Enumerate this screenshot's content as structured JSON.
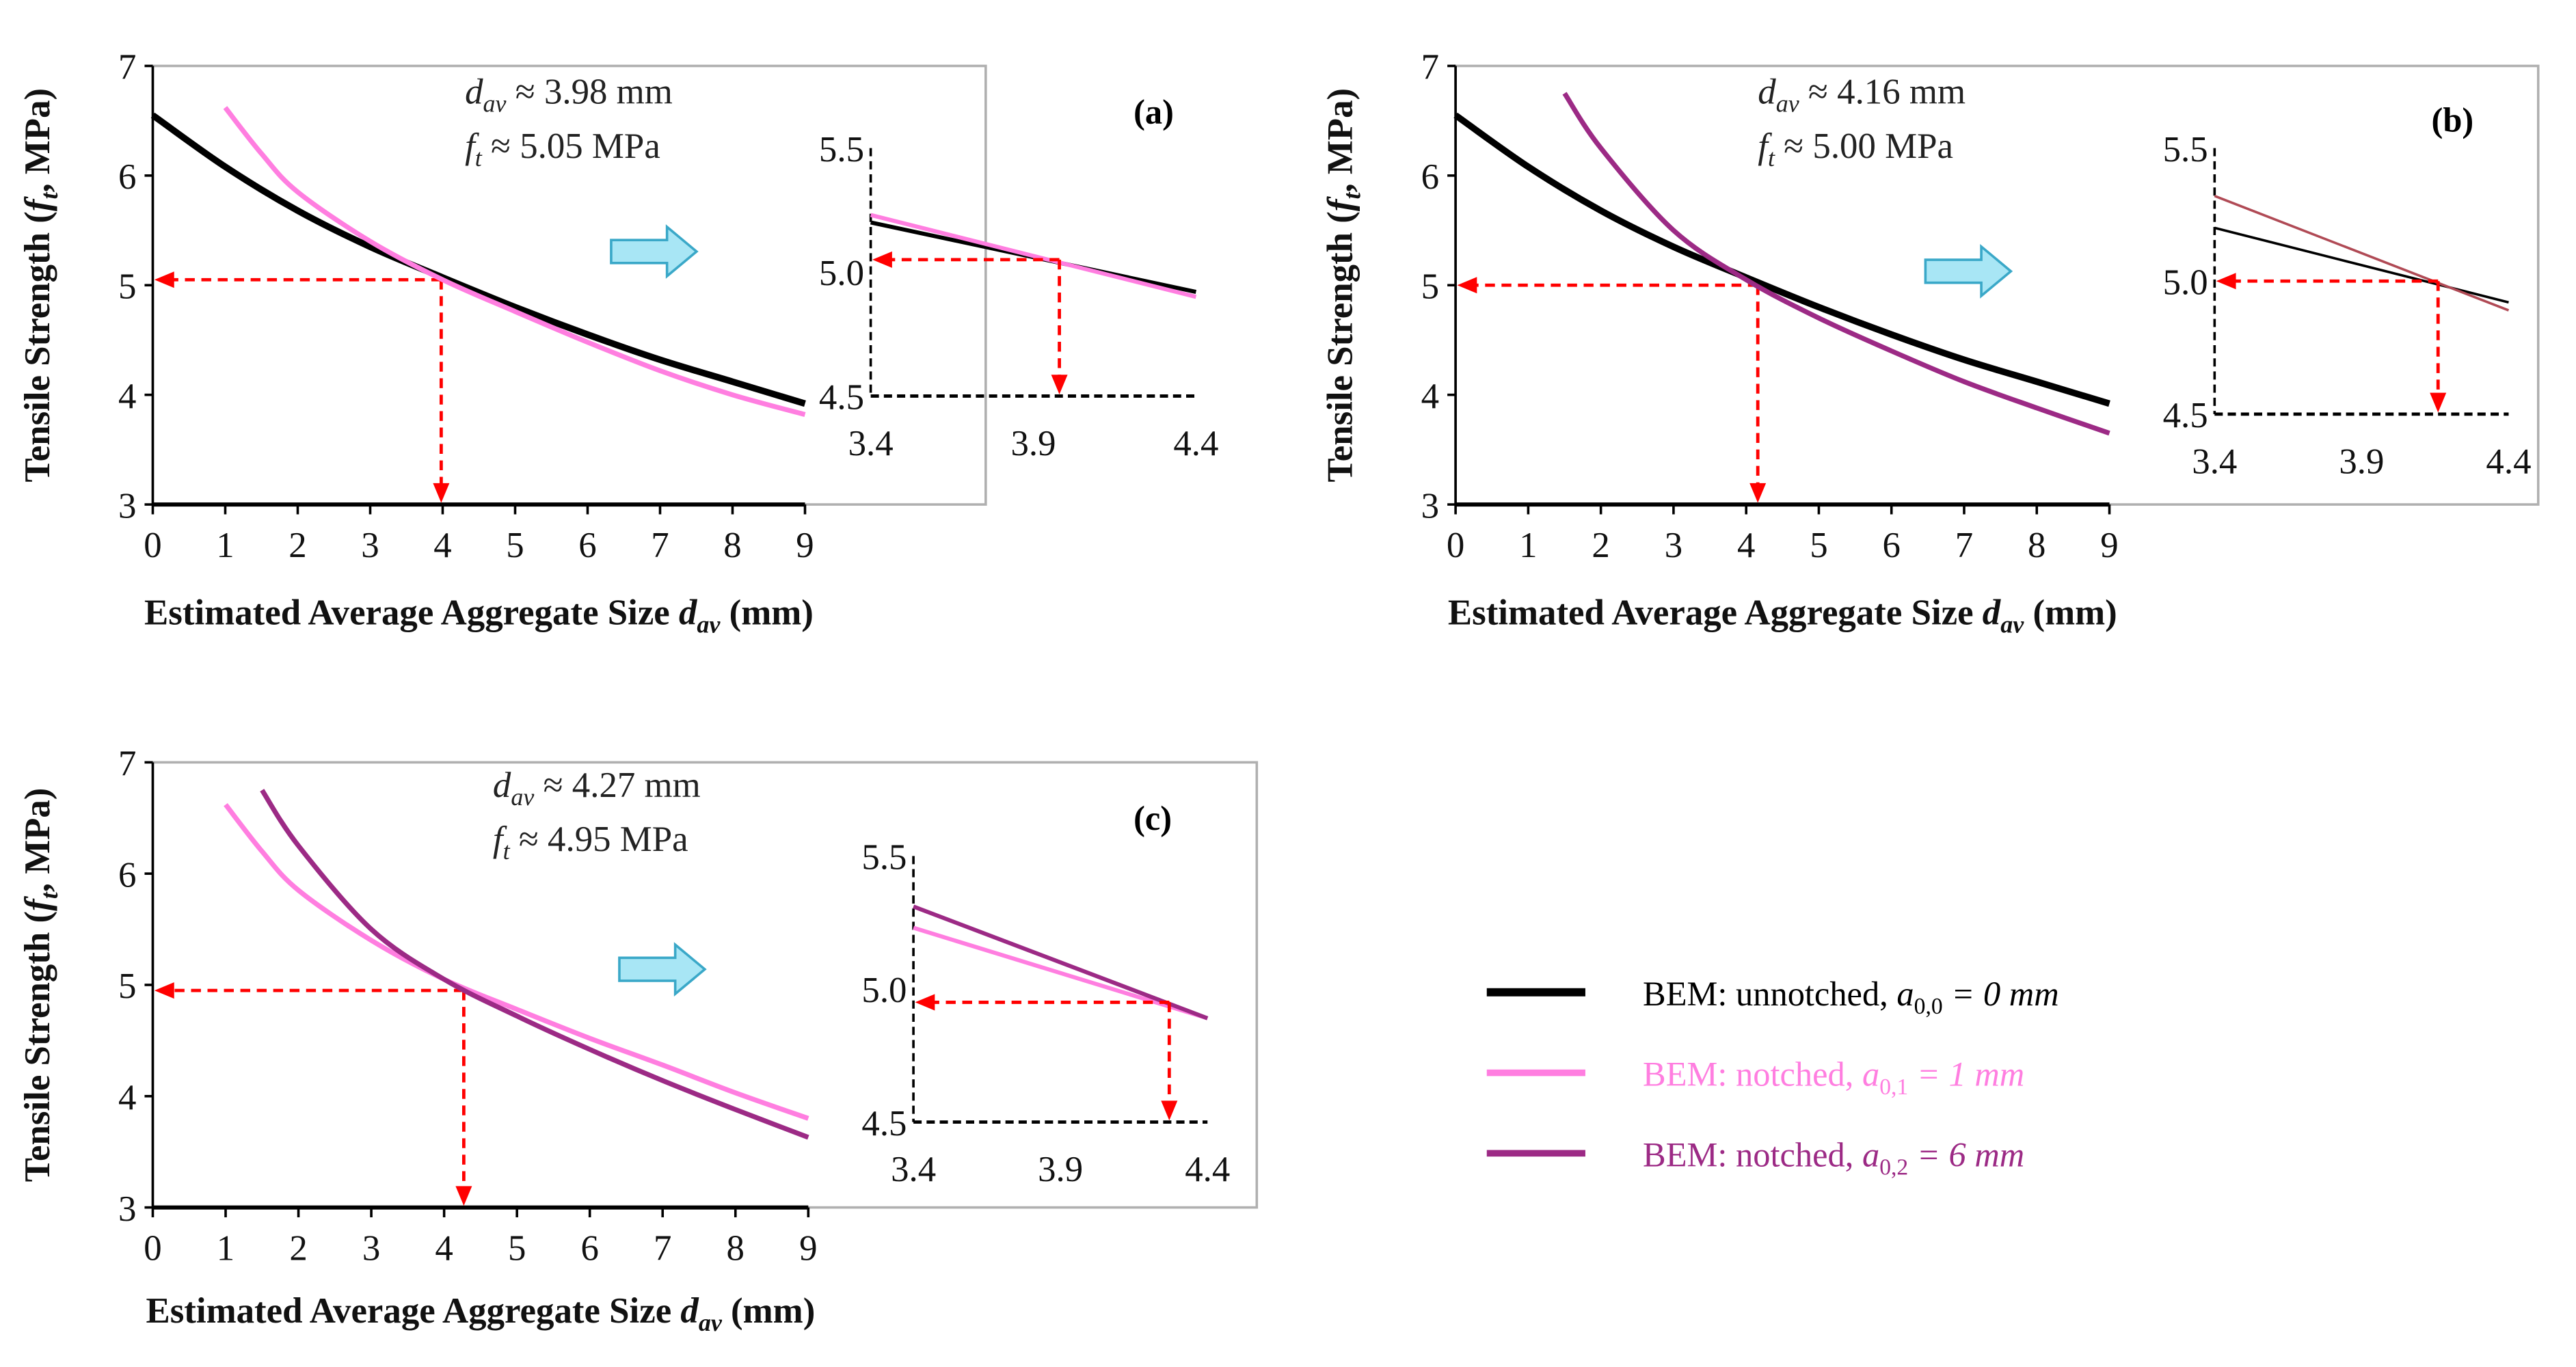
{
  "chart_data": [
    {
      "type": "line",
      "panel_label": "(a)",
      "xlabel": {
        "text": "Estimated Average Aggregate Size ",
        "sym": "d",
        "sub": "av",
        "unit": " (mm)"
      },
      "ylabel": {
        "text": "Tensile Strength (",
        "sym": "f",
        "sub": "t",
        "unit": ", MPa)"
      },
      "xlim": [
        0,
        9
      ],
      "ylim": [
        3,
        7
      ],
      "xticks": [
        "0",
        "1",
        "2",
        "3",
        "4",
        "5",
        "6",
        "7",
        "8",
        "9"
      ],
      "yticks": [
        "3",
        "4",
        "5",
        "6",
        "7"
      ],
      "annotation": [
        {
          "sym": "d",
          "sub": "av",
          "rest": " ≈ 3.98 mm"
        },
        {
          "sym": "f",
          "sub": "t",
          "rest": " ≈ 5.05 MPa"
        }
      ],
      "intersection": {
        "x": 3.98,
        "y": 5.05
      },
      "series": [
        {
          "name": "BEM: unnotched, a0,0 = 0 mm",
          "color": "#000000",
          "x": [
            0,
            1,
            2,
            3,
            4,
            5,
            6,
            7,
            8,
            9
          ],
          "y": [
            6.55,
            6.08,
            5.68,
            5.35,
            5.07,
            4.8,
            4.55,
            4.32,
            4.12,
            3.92
          ]
        },
        {
          "name": "BEM: notched, a0,1 = 1 mm",
          "color": "#ff7ee0",
          "x": [
            1,
            1.5,
            2,
            3,
            4,
            5,
            6,
            7,
            8,
            9
          ],
          "y": [
            6.62,
            6.2,
            5.85,
            5.4,
            5.05,
            4.76,
            4.48,
            4.22,
            4.0,
            3.82
          ]
        }
      ],
      "inset": {
        "xlim": [
          3.4,
          4.4
        ],
        "ylim": [
          4.5,
          5.5
        ],
        "xticks": [
          "3.4",
          "3.9",
          "4.4"
        ],
        "yticks": [
          "4.5",
          "5.0",
          "5.5"
        ],
        "series": [
          {
            "color": "#000000",
            "x": [
              3.4,
              4.4
            ],
            "y": [
              5.2,
              4.92
            ]
          },
          {
            "color": "#ff7ee0",
            "x": [
              3.4,
              4.4
            ],
            "y": [
              5.23,
              4.9
            ]
          }
        ],
        "intersection": {
          "x": 3.98,
          "y": 5.05
        }
      }
    },
    {
      "type": "line",
      "panel_label": "(b)",
      "xlabel": {
        "text": "Estimated Average Aggregate Size ",
        "sym": "d",
        "sub": "av",
        "unit": " (mm)"
      },
      "ylabel": {
        "text": "Tensile Strength (",
        "sym": "f",
        "sub": "t",
        "unit": ", MPa)"
      },
      "xlim": [
        0,
        9
      ],
      "ylim": [
        3,
        7
      ],
      "xticks": [
        "0",
        "1",
        "2",
        "3",
        "4",
        "5",
        "6",
        "7",
        "8",
        "9"
      ],
      "yticks": [
        "3",
        "4",
        "5",
        "6",
        "7"
      ],
      "annotation": [
        {
          "sym": "d",
          "sub": "av",
          "rest": " ≈ 4.16 mm"
        },
        {
          "sym": "f",
          "sub": "t",
          "rest": " ≈ 5.00 MPa"
        }
      ],
      "intersection": {
        "x": 4.16,
        "y": 5.0
      },
      "series": [
        {
          "name": "BEM: unnotched, a0,0 = 0 mm",
          "color": "#000000",
          "x": [
            0,
            1,
            2,
            3,
            4,
            5,
            6,
            7,
            8,
            9
          ],
          "y": [
            6.55,
            6.08,
            5.68,
            5.35,
            5.07,
            4.8,
            4.55,
            4.32,
            4.12,
            3.92
          ]
        },
        {
          "name": "BEM: notched, a0,2 = 6 mm",
          "color": "#9c2a85",
          "x": [
            1.5,
            2,
            3,
            4,
            5,
            6,
            7,
            8,
            9
          ],
          "y": [
            6.75,
            6.25,
            5.5,
            5.05,
            4.7,
            4.4,
            4.12,
            3.88,
            3.65
          ]
        }
      ],
      "inset": {
        "xlim": [
          3.4,
          4.4
        ],
        "ylim": [
          4.5,
          5.5
        ],
        "xticks": [
          "3.4",
          "3.9",
          "4.4"
        ],
        "yticks": [
          "4.5",
          "5.0",
          "5.5"
        ],
        "series": [
          {
            "color": "#000000",
            "x": [
              3.4,
              4.4
            ],
            "y": [
              5.2,
              4.92
            ]
          },
          {
            "color": "#b04a55",
            "x": [
              3.4,
              4.4
            ],
            "y": [
              5.32,
              4.89
            ]
          }
        ],
        "intersection": {
          "x": 4.16,
          "y": 5.0
        }
      }
    },
    {
      "type": "line",
      "panel_label": "(c)",
      "xlabel": {
        "text": "Estimated Average Aggregate Size ",
        "sym": "d",
        "sub": "av",
        "unit": " (mm)"
      },
      "ylabel": {
        "text": "Tensile Strength (",
        "sym": "f",
        "sub": "t",
        "unit": ", MPa)"
      },
      "xlim": [
        0,
        9
      ],
      "ylim": [
        3,
        7
      ],
      "xticks": [
        "0",
        "1",
        "2",
        "3",
        "4",
        "5",
        "6",
        "7",
        "8",
        "9"
      ],
      "yticks": [
        "3",
        "4",
        "5",
        "6",
        "7"
      ],
      "annotation": [
        {
          "sym": "d",
          "sub": "av",
          "rest": " ≈ 4.27 mm"
        },
        {
          "sym": "f",
          "sub": "t",
          "rest": " ≈ 4.95 MPa"
        }
      ],
      "intersection": {
        "x": 4.27,
        "y": 4.95
      },
      "series": [
        {
          "name": "BEM: notched, a0,1 = 1 mm",
          "color": "#ff7ee0",
          "x": [
            1,
            1.5,
            2,
            3,
            4,
            5,
            6,
            7,
            8,
            9
          ],
          "y": [
            6.62,
            6.2,
            5.85,
            5.4,
            5.05,
            4.78,
            4.52,
            4.28,
            4.03,
            3.8
          ]
        },
        {
          "name": "BEM: notched, a0,2 = 6 mm",
          "color": "#9c2a85",
          "x": [
            1.5,
            2,
            3,
            4,
            5,
            6,
            7,
            8,
            9
          ],
          "y": [
            6.75,
            6.25,
            5.5,
            5.05,
            4.72,
            4.42,
            4.14,
            3.88,
            3.63
          ]
        }
      ],
      "inset": {
        "xlim": [
          3.4,
          4.4
        ],
        "ylim": [
          4.5,
          5.5
        ],
        "xticks": [
          "3.4",
          "3.9",
          "4.4"
        ],
        "yticks": [
          "4.5",
          "5.0",
          "5.5"
        ],
        "series": [
          {
            "color": "#ff7ee0",
            "x": [
              3.4,
              4.4
            ],
            "y": [
              5.23,
              4.89
            ]
          },
          {
            "color": "#9c2a85",
            "x": [
              3.4,
              4.4
            ],
            "y": [
              5.31,
              4.89
            ]
          }
        ],
        "intersection": {
          "x": 4.27,
          "y": 4.95
        }
      }
    }
  ],
  "legend": {
    "placement": "bottom-right",
    "entries": [
      {
        "prefix": "BEM: unnotched, ",
        "sym": "a",
        "sub": "0,0",
        "rest": " = 0 mm",
        "color": "#000000"
      },
      {
        "prefix": "BEM: notched, ",
        "sym": "a",
        "sub": "0,1",
        "rest": " = 1 mm",
        "color": "#ff7ee0"
      },
      {
        "prefix": "BEM: notched, ",
        "sym": "a",
        "sub": "0,2",
        "rest": " = 6 mm",
        "color": "#9c2a85"
      }
    ]
  },
  "colors": {
    "guide": "#ff0000",
    "arrow_fill": "#a8e6f5",
    "arrow_stroke": "#3aa8c8"
  }
}
